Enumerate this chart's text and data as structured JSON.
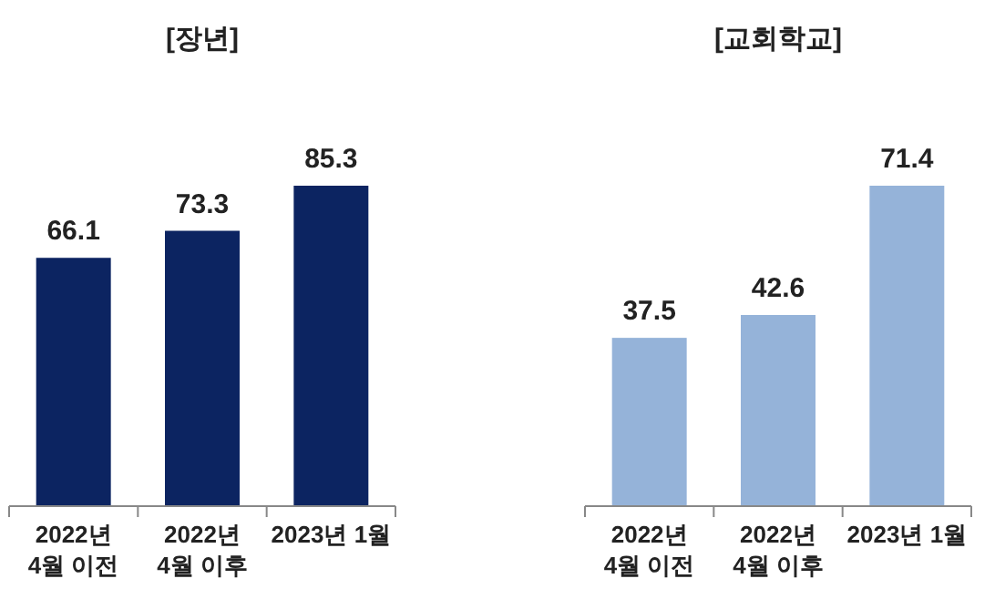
{
  "chart_data": [
    {
      "type": "bar",
      "title": "[장년]",
      "categories": [
        "2022년\n4월 이전",
        "2022년\n4월 이후",
        "2023년 1월"
      ],
      "values": [
        66.1,
        73.3,
        85.3
      ],
      "color": "#0c2461",
      "data_labels": true
    },
    {
      "type": "bar",
      "title": "[교회학교]",
      "categories": [
        "2022년\n4월 이전",
        "2022년\n4월 이후",
        "2023년 1월"
      ],
      "values": [
        37.5,
        42.6,
        71.4
      ],
      "color": "#95b3d9",
      "data_labels": true
    }
  ]
}
